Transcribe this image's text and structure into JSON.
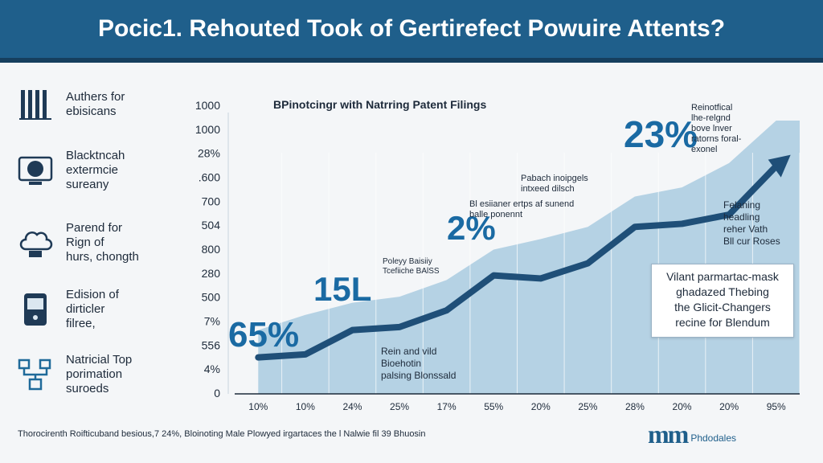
{
  "header": {
    "title": "Pocic1. Rehouted Took of Gertirefect Powuire Attents?"
  },
  "sidebar": {
    "items": [
      {
        "icon": "bar-chart-icon",
        "label": "Authers for\nebisicans"
      },
      {
        "icon": "monitor-globe-icon",
        "label": "Blacktncah\nextermcie\nsureany"
      },
      {
        "icon": "cloud-robot-icon",
        "label": "Parend for\nRign of\nhurs, chongth"
      },
      {
        "icon": "device-icon",
        "label": "Edision of\ndirticler\nfilree,"
      },
      {
        "icon": "network-icon",
        "label": "Natricial Top\nporimation\nsuroeds"
      }
    ]
  },
  "chart_data": {
    "type": "area",
    "title": "BPinotcingr with Natrring Patent Filings",
    "ytick_labels": [
      "1000",
      "1000",
      "28%",
      ".600",
      "700",
      "504",
      "800",
      "280",
      "500",
      "7%",
      "556",
      "4%",
      "0"
    ],
    "categories": [
      "10%",
      "10%",
      "24%",
      "25%",
      "17%",
      "55%",
      "20%",
      "25%",
      "28%",
      "20%",
      "20%",
      "95%"
    ],
    "series": [
      {
        "name": "",
        "values": [
          24,
          26,
          42,
          44,
          55,
          78,
          76,
          86,
          110,
          112,
          118,
          150
        ]
      }
    ],
    "area_values": [
      42,
      52,
      60,
      64,
      75,
      95,
      102,
      110,
      130,
      136,
      152,
      180
    ],
    "ylim": [
      0,
      180
    ],
    "big_labels": [
      "65%",
      "15L",
      "2%",
      "23%"
    ],
    "callouts": [
      "Reinotfical\nlhe-relgnd\nbove lnver\nratorns foral-\nexonel",
      "Pabach inoipgels\nintxeed dilsch",
      "Bl esiianer ertps af sunend\nballe ponennt",
      "Felaning\nheadling\nreher Vath\nBll cur Roses",
      "Poleyy Baisiiy\nTcefiiche BAlSS",
      "Rein and vild\nBioehotin\npalsing Blonssald"
    ],
    "highlight": "Vilant parmartac-mask\nghadazed Thebing\nthe Glicit-Changers\nrecine for Blendum"
  },
  "footer": {
    "text": "Thorocirenth Roifticuband besious,7 24%, Bloinoting Male Plowyed irgartaces the l Nalwie fil 39 Bhuosin",
    "logo_mark": "mm",
    "logo_text": "Phdodales"
  },
  "colors": {
    "banner": "#1f5f8b",
    "area": "#a9cbe0",
    "line": "#1f4f78",
    "accent": "#1a6aa3"
  }
}
